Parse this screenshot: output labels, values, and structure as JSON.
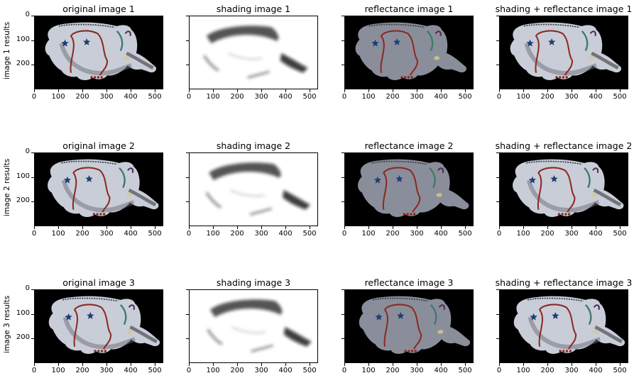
{
  "figure": {
    "rows": [
      {
        "label": "image 1 results",
        "titles": [
          "original image 1",
          "shading image 1",
          "reflectance image 1",
          "shading + reflectance image 1"
        ]
      },
      {
        "label": "image 2 results",
        "titles": [
          "original image 2",
          "shading image 2",
          "reflectance image 2",
          "shading + reflectance image 2"
        ]
      },
      {
        "label": "image 3 results",
        "titles": [
          "original image 3",
          "shading image 3",
          "reflectance image 3",
          "shading + reflectance image 3"
        ]
      }
    ],
    "x_ticks": [
      "0",
      "100",
      "200",
      "300",
      "400",
      "500"
    ],
    "y_ticks": [
      "0",
      "100",
      "200"
    ],
    "image_width": 535,
    "image_height": 300,
    "colors": {
      "background_dark": "#000000",
      "statue_light": "#c9cdd8",
      "statue_reflectance": "#8a8e9a",
      "shading_bg": "#ffffff",
      "paint_red": "#8b2a22",
      "paint_blue": "#1e3f72",
      "paint_green": "#3f7a6a",
      "paint_purple": "#4a2a55"
    }
  }
}
